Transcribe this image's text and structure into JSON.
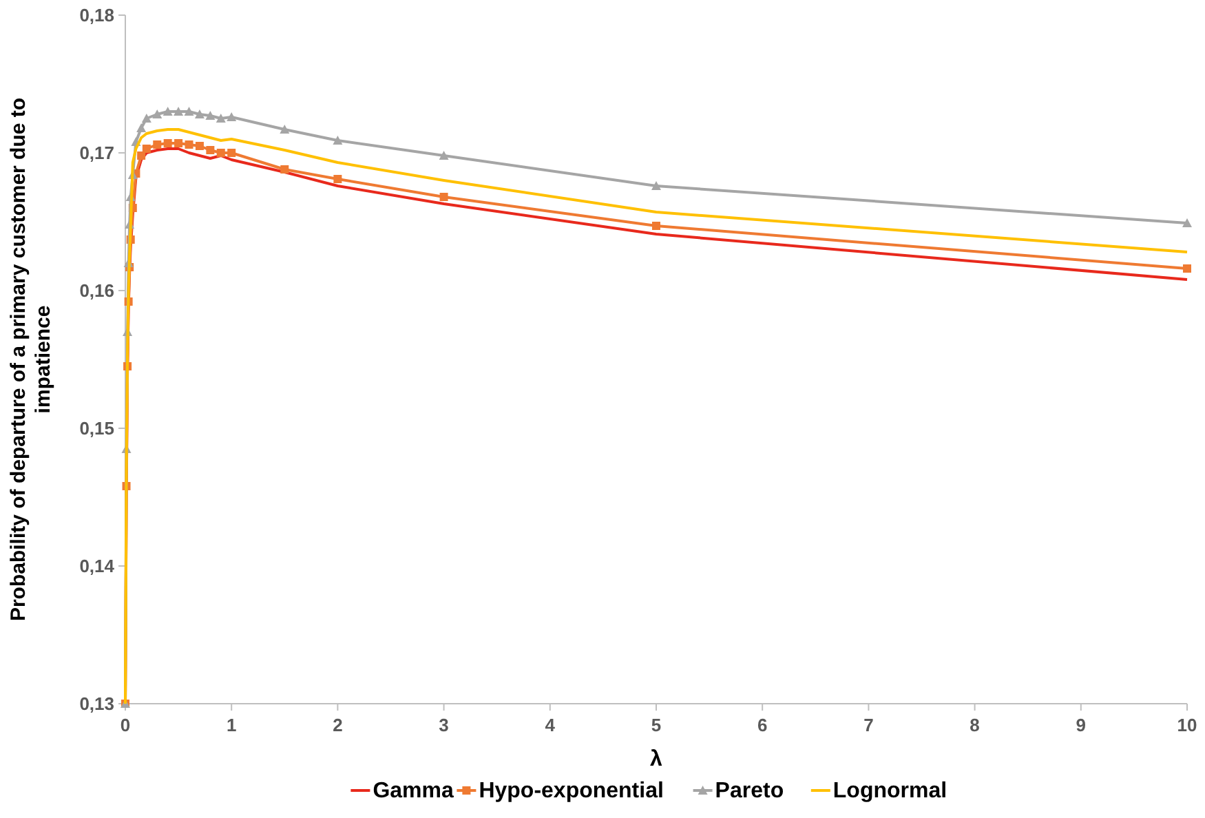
{
  "chart_data": {
    "type": "line",
    "xlabel": "λ",
    "ylabel": "Probability of departure of a primary customer due to impatience",
    "x": [
      0,
      0.01,
      0.02,
      0.03,
      0.04,
      0.05,
      0.07,
      0.1,
      0.15,
      0.2,
      0.3,
      0.4,
      0.5,
      0.6,
      0.7,
      0.8,
      0.9,
      1,
      1.5,
      2,
      3,
      5,
      10
    ],
    "series": [
      {
        "name": "Gamma",
        "color": "#e8291c",
        "marker": "none",
        "values": [
          0.13,
          0.145,
          0.154,
          0.1588,
          0.1613,
          0.1632,
          0.1655,
          0.1682,
          0.1695,
          0.17,
          0.1702,
          0.1703,
          0.1703,
          0.17,
          0.1698,
          0.1696,
          0.1698,
          0.1695,
          0.1686,
          0.1676,
          0.1663,
          0.1641,
          0.1608
        ]
      },
      {
        "name": "Hypo-exponential",
        "color": "#ef7a32",
        "marker": "square",
        "values": [
          0.13,
          0.1458,
          0.1545,
          0.1592,
          0.1617,
          0.1637,
          0.166,
          0.1685,
          0.1698,
          0.1703,
          0.1706,
          0.1707,
          0.1707,
          0.1706,
          0.1705,
          0.1702,
          0.17,
          0.17,
          0.1688,
          0.1681,
          0.1668,
          0.1647,
          0.1616
        ]
      },
      {
        "name": "Pareto",
        "color": "#a5a5a5",
        "marker": "triangle",
        "values": [
          0.13,
          0.1485,
          0.157,
          0.162,
          0.1648,
          0.1668,
          0.1684,
          0.1708,
          0.1718,
          0.1725,
          0.1728,
          0.173,
          0.173,
          0.173,
          0.1728,
          0.1727,
          0.1725,
          0.1726,
          0.1717,
          0.1709,
          0.1698,
          0.1676,
          0.1649
        ]
      },
      {
        "name": "Lognormal",
        "color": "#ffc000",
        "marker": "none",
        "values": [
          0.13,
          0.147,
          0.1555,
          0.16,
          0.1627,
          0.1647,
          0.1693,
          0.1703,
          0.1711,
          0.1714,
          0.1716,
          0.1717,
          0.1717,
          0.1715,
          0.1713,
          0.1711,
          0.1709,
          0.171,
          0.1702,
          0.1693,
          0.168,
          0.1657,
          0.1628
        ]
      }
    ],
    "xlim": [
      0,
      10
    ],
    "xticks": [
      0,
      1,
      2,
      3,
      4,
      5,
      6,
      7,
      8,
      9,
      10
    ],
    "ylim": [
      0.13,
      0.18
    ],
    "yticks": [
      {
        "value": 0.13,
        "label": "0,13"
      },
      {
        "value": 0.14,
        "label": "0,14"
      },
      {
        "value": 0.15,
        "label": "0,15"
      },
      {
        "value": 0.16,
        "label": "0,16"
      },
      {
        "value": 0.17,
        "label": "0,17"
      },
      {
        "value": 0.18,
        "label": "0,18"
      }
    ],
    "grid": false,
    "legend": "bottom"
  }
}
